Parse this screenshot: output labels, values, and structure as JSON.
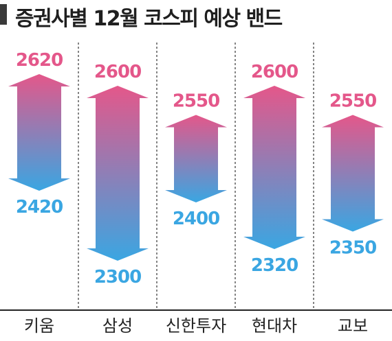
{
  "title": "증권사별 12월 코스피 예상 밴드",
  "colors": {
    "top": "#e4578a",
    "bottom": "#3aa6e2",
    "high_label": "#e4578a",
    "low_label": "#3aa6e2"
  },
  "chart_data": {
    "type": "range-arrow",
    "title": "증권사별 12월 코스피 예상 밴드",
    "categories": [
      "키움",
      "삼성",
      "신한투자",
      "현대차",
      "교보"
    ],
    "series": [
      {
        "name": "",
        "high": 2620,
        "low": 2420
      },
      {
        "name": "",
        "high": 2600,
        "low": 2300
      },
      {
        "name": "",
        "high": 2550,
        "low": 2400
      },
      {
        "name": "",
        "high": 2600,
        "low": 2320
      },
      {
        "name": "",
        "high": 2550,
        "low": 2350
      }
    ],
    "ylim": [
      2300,
      2620
    ],
    "grid": false
  }
}
